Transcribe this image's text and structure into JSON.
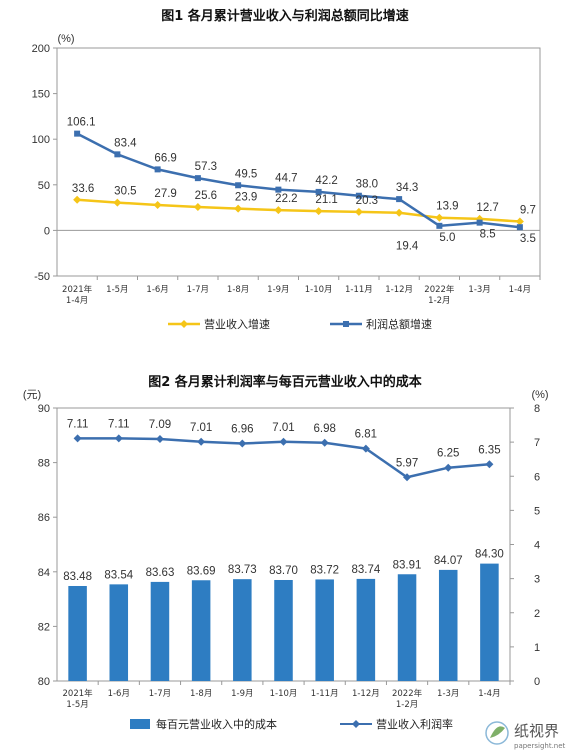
{
  "chart_data": [
    {
      "type": "line",
      "title": "图1  各月累计营业收入与利润总额同比增速",
      "ylabel": "(%)",
      "ylim": [
        -50,
        200
      ],
      "yticks": [
        "200",
        "150",
        "100",
        "50",
        "0",
        "-50"
      ],
      "categories": [
        [
          "2021年",
          "1-4月"
        ],
        [
          "1-5月"
        ],
        [
          "1-6月"
        ],
        [
          "1-7月"
        ],
        [
          "1-8月"
        ],
        [
          "1-9月"
        ],
        [
          "1-10月"
        ],
        [
          "1-11月"
        ],
        [
          "1-12月"
        ],
        [
          "2022年",
          "1-2月"
        ],
        [
          "1-3月"
        ],
        [
          "1-4月"
        ]
      ],
      "series": [
        {
          "name": "营业收入增速",
          "color": "#F5C518",
          "values": [
            33.6,
            30.5,
            27.9,
            25.6,
            23.9,
            22.2,
            21.1,
            20.3,
            19.4,
            13.9,
            12.7,
            9.7
          ],
          "labels": [
            "33.6",
            "30.5",
            "27.9",
            "25.6",
            "23.9",
            "22.2",
            "21.1",
            "20.3",
            "19.4",
            "13.9",
            "12.7",
            "9.7"
          ]
        },
        {
          "name": "利润总额增速",
          "color": "#3C6FAF",
          "values": [
            106.1,
            83.4,
            66.9,
            57.3,
            49.5,
            44.7,
            42.2,
            38.0,
            34.3,
            5.0,
            8.5,
            3.5
          ],
          "labels": [
            "106.1",
            "83.4",
            "66.9",
            "57.3",
            "49.5",
            "44.7",
            "42.2",
            "38.0",
            "34.3",
            "5.0",
            "8.5",
            "3.5"
          ]
        }
      ]
    },
    {
      "type": "bar",
      "title": "图2  各月累计利润率与每百元营业收入中的成本",
      "ylabel_left": "(元)",
      "ylabel_right": "(%)",
      "ylim_left": [
        80,
        90
      ],
      "yticks_left": [
        "90",
        "88",
        "86",
        "84",
        "82",
        "80"
      ],
      "ylim_right": [
        0,
        8
      ],
      "yticks_right": [
        "8",
        "7",
        "6",
        "5",
        "4",
        "3",
        "2",
        "1",
        "0"
      ],
      "categories": [
        [
          "2021年",
          "1-5月"
        ],
        [
          "1-6月"
        ],
        [
          "1-7月"
        ],
        [
          "1-8月"
        ],
        [
          "1-9月"
        ],
        [
          "1-10月"
        ],
        [
          "1-11月"
        ],
        [
          "1-12月"
        ],
        [
          "2022年",
          "1-2月"
        ],
        [
          "1-3月"
        ],
        [
          "1-4月"
        ]
      ],
      "series": [
        {
          "name": "每百元营业收入中的成本",
          "type": "bar",
          "color": "#2E7DC2",
          "values": [
            83.48,
            83.54,
            83.63,
            83.69,
            83.73,
            83.7,
            83.72,
            83.74,
            83.91,
            84.07,
            84.3
          ],
          "labels": [
            "83.48",
            "83.54",
            "83.63",
            "83.69",
            "83.73",
            "83.70",
            "83.72",
            "83.74",
            "83.91",
            "84.07",
            "84.30"
          ]
        },
        {
          "name": "营业收入利润率",
          "type": "line",
          "color": "#3C6FAF",
          "values": [
            7.11,
            7.11,
            7.09,
            7.01,
            6.96,
            7.01,
            6.98,
            6.81,
            5.97,
            6.25,
            6.35
          ],
          "labels": [
            "7.11",
            "7.11",
            "7.09",
            "7.01",
            "6.96",
            "7.01",
            "6.98",
            "6.81",
            "5.97",
            "6.25",
            "6.35"
          ]
        }
      ]
    }
  ],
  "watermark": {
    "brand": "纸视界",
    "url": "papersight.net"
  }
}
